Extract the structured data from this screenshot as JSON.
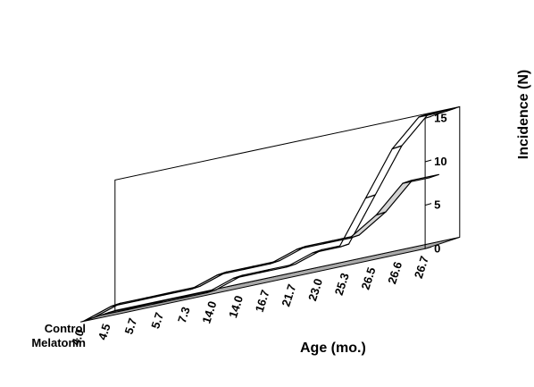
{
  "chart_data": {
    "type": "line",
    "style": "3d-ribbon",
    "categories": [
      "4.0",
      "4.5",
      "5.7",
      "5.7",
      "7.3",
      "14.0",
      "14.0",
      "16.7",
      "21.7",
      "23.0",
      "25.3",
      "26.5",
      "26.6",
      "26.7"
    ],
    "series": [
      {
        "name": "Control",
        "values": [
          0,
          0,
          0,
          0,
          0,
          1,
          1,
          1,
          2,
          2,
          7,
          12,
          15,
          15
        ],
        "color": "#ffffff"
      },
      {
        "name": "Melatonin",
        "values": [
          0,
          1,
          1,
          1,
          1,
          2,
          2,
          2,
          3,
          3,
          3,
          5,
          8,
          8
        ],
        "color": "#d4d4d4"
      }
    ],
    "xlabel": "Age (mo.)",
    "ylabel": "Incidence (N)",
    "ylim": [
      0,
      15
    ],
    "yticks": [
      0,
      5,
      10,
      15
    ],
    "floor_color": "#a9a9a9"
  }
}
